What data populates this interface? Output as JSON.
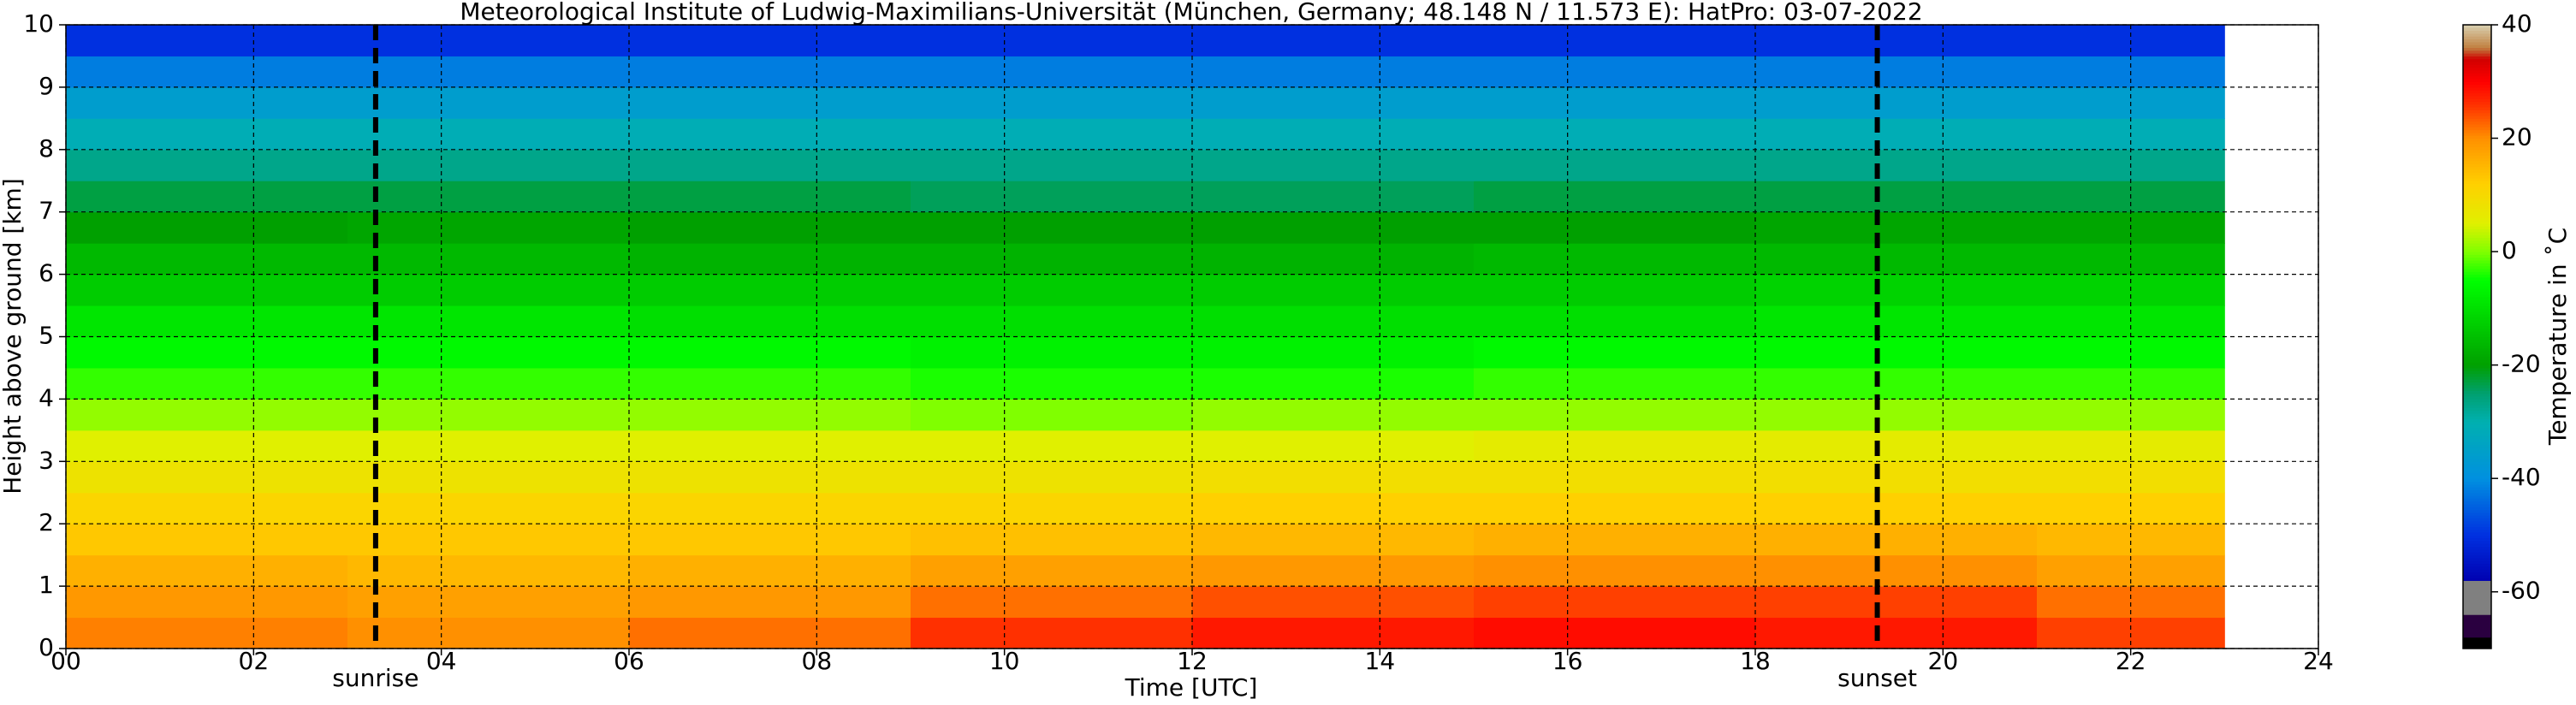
{
  "chart_data": {
    "type": "heatmap",
    "title": "Meteorological Institute of Ludwig-Maximilians-Universität (München, Germany; 48.148 N / 11.573 E):    HatPro: 03-07-2022",
    "x_label": "Time [UTC]",
    "y_label": "Height above ground [km]",
    "colorbar_label": "Temperature in ˚C",
    "xlim": [
      0,
      24
    ],
    "ylim": [
      0,
      10
    ],
    "xticks": [
      {
        "value": 0,
        "label": "00"
      },
      {
        "value": 2,
        "label": "02"
      },
      {
        "value": 4,
        "label": "04"
      },
      {
        "value": 6,
        "label": "06"
      },
      {
        "value": 8,
        "label": "08"
      },
      10,
      12,
      14,
      16,
      18,
      20,
      22,
      24
    ],
    "yticks": [
      0,
      1,
      2,
      3,
      4,
      5,
      6,
      7,
      8,
      9,
      10
    ],
    "grid": true,
    "x_edges": [
      0,
      3,
      6,
      9,
      12,
      15,
      18,
      21,
      23
    ],
    "y_edges": [
      0,
      0.5,
      1,
      1.5,
      2,
      2.5,
      3,
      3.5,
      4,
      4.5,
      5,
      5.5,
      6,
      6.5,
      7,
      7.5,
      8,
      8.5,
      9,
      9.5,
      10
    ],
    "z": [
      [
        21,
        20,
        22,
        26,
        28,
        29,
        28,
        25
      ],
      [
        19,
        18,
        19,
        22,
        24,
        25,
        25,
        22
      ],
      [
        16,
        15,
        16,
        18,
        19,
        20,
        20,
        18
      ],
      [
        13,
        13,
        13,
        14,
        15,
        16,
        16,
        15
      ],
      [
        11,
        11,
        11,
        11,
        12,
        12,
        12,
        12
      ],
      [
        8,
        8,
        8,
        8,
        9,
        9,
        9,
        9
      ],
      [
        5,
        5,
        5,
        5,
        5,
        6,
        6,
        6
      ],
      [
        1,
        1,
        1,
        0,
        1,
        1,
        1,
        1
      ],
      [
        -3,
        -3,
        -3,
        -4,
        -4,
        -3,
        -3,
        -3
      ],
      [
        -6,
        -6,
        -6,
        -7,
        -7,
        -6,
        -6,
        -6
      ],
      [
        -9,
        -9,
        -10,
        -10,
        -10,
        -10,
        -9,
        -9
      ],
      [
        -13,
        -13,
        -13,
        -13,
        -13,
        -13,
        -12,
        -12
      ],
      [
        -16,
        -16,
        -17,
        -17,
        -17,
        -16,
        -16,
        -16
      ],
      [
        -20,
        -19,
        -20,
        -20,
        -20,
        -20,
        -19,
        -19
      ],
      [
        -23,
        -23,
        -23,
        -24,
        -24,
        -23,
        -23,
        -23
      ],
      [
        -27,
        -27,
        -27,
        -27,
        -27,
        -27,
        -27,
        -27
      ],
      [
        -31,
        -31,
        -31,
        -31,
        -31,
        -31,
        -31,
        -31
      ],
      [
        -36,
        -36,
        -36,
        -36,
        -36,
        -36,
        -36,
        -36
      ],
      [
        -42,
        -42,
        -42,
        -42,
        -42,
        -42,
        -42,
        -42
      ],
      [
        -50,
        -50,
        -50,
        -50,
        -50,
        -50,
        -50,
        -50
      ]
    ],
    "clim": [
      -70,
      40
    ],
    "cticks": [
      -60,
      -40,
      -20,
      0,
      20,
      40
    ],
    "colorscale": [
      [
        -70,
        "#000000"
      ],
      [
        -68,
        "#000000"
      ],
      [
        -68,
        "#2a0040"
      ],
      [
        -64,
        "#2a0040"
      ],
      [
        -64,
        "#808080"
      ],
      [
        -58,
        "#808080"
      ],
      [
        -58,
        "#0000b0"
      ],
      [
        -50,
        "#0030e0"
      ],
      [
        -40,
        "#0090e0"
      ],
      [
        -30,
        "#00b0b0"
      ],
      [
        -25,
        "#00a070"
      ],
      [
        -20,
        "#00a000"
      ],
      [
        -5,
        "#00ff00"
      ],
      [
        0,
        "#80ff00"
      ],
      [
        5,
        "#e0f000"
      ],
      [
        12,
        "#ffd000"
      ],
      [
        20,
        "#ff9000"
      ],
      [
        26,
        "#ff3000"
      ],
      [
        30,
        "#ff0000"
      ],
      [
        34,
        "#d00000"
      ],
      [
        36,
        "#c08040"
      ],
      [
        40,
        "#d8d0b0"
      ]
    ],
    "events": [
      {
        "label": "sunrise",
        "x": 3.3
      },
      {
        "label": "sunset",
        "x": 19.3
      }
    ]
  }
}
